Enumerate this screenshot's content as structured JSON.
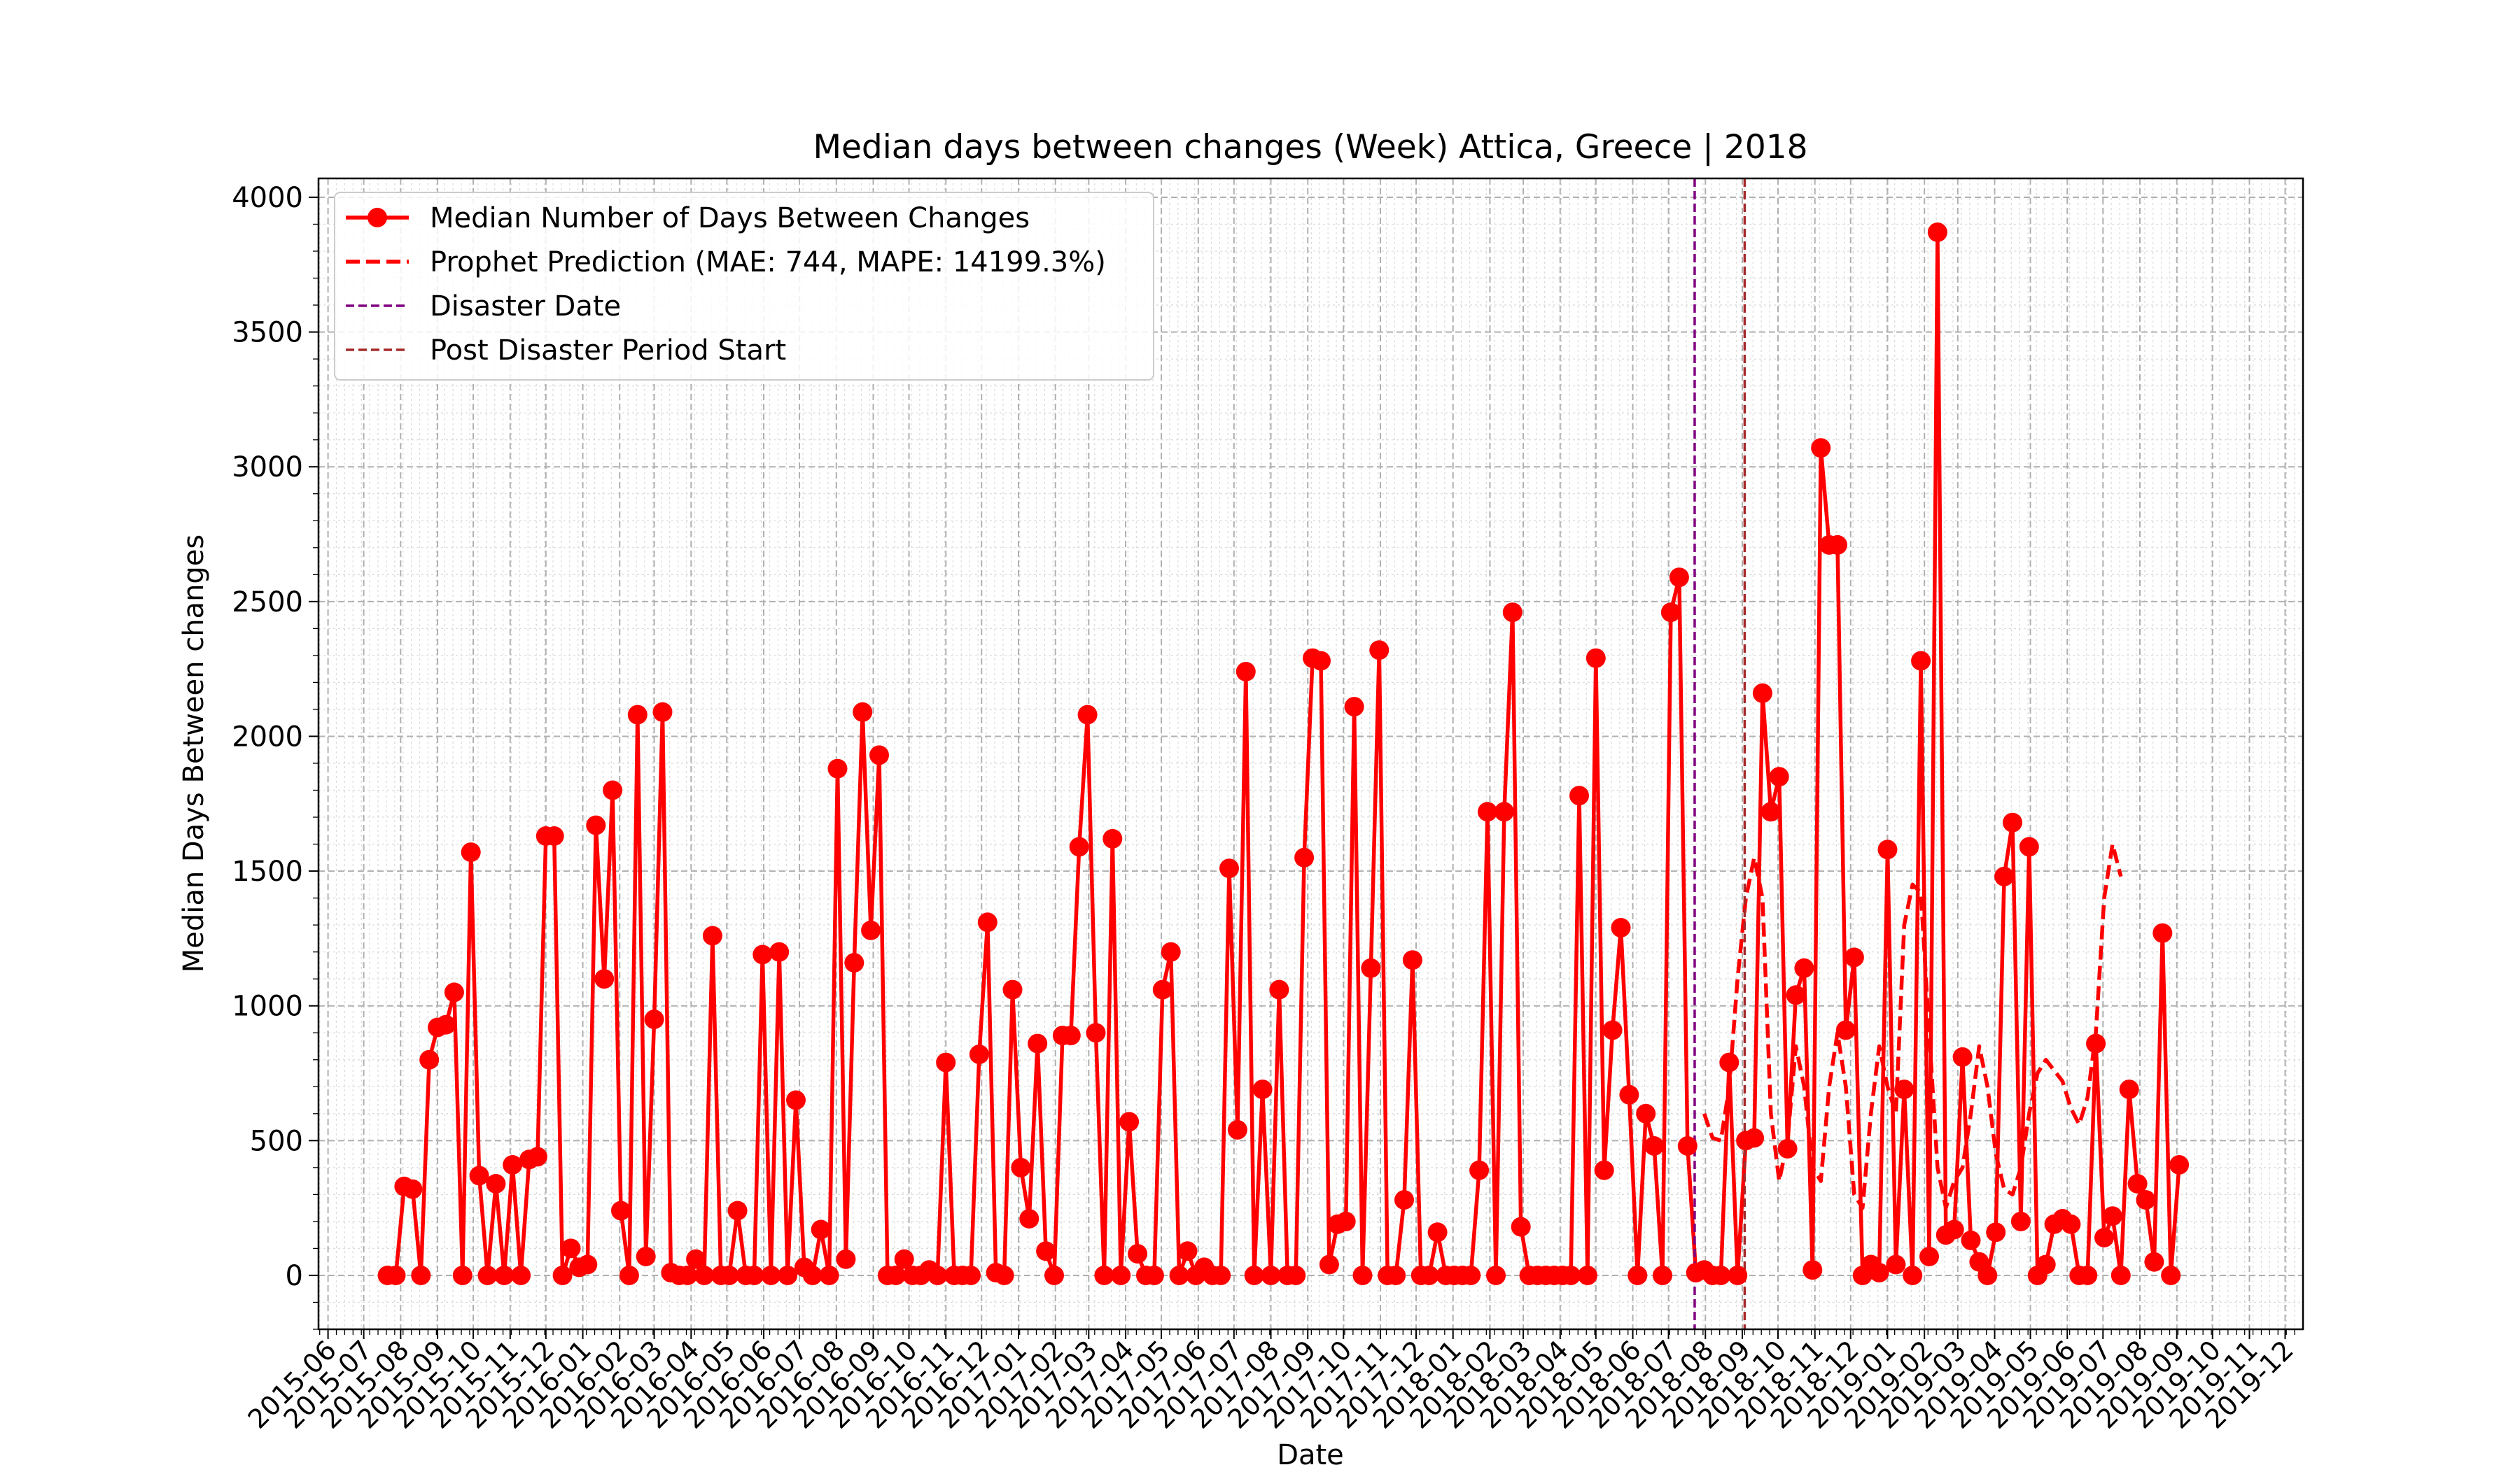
{
  "chart_data": {
    "type": "line",
    "title": "Median days between changes (Week) Attica, Greece | 2018",
    "xlabel": "Date",
    "ylabel": "Median Days Between changes",
    "ylim": [
      -200,
      4070
    ],
    "yticks": [
      0,
      500,
      1000,
      1500,
      2000,
      2500,
      3000,
      3500,
      4000
    ],
    "ytick_labels": [
      "0",
      "500",
      "1000",
      "1500",
      "2000",
      "2500",
      "3000",
      "3500",
      "4000"
    ],
    "xlim": [
      "2015-05-24",
      "2019-12-16"
    ],
    "xtick_labels": [
      "2015-06",
      "2015-07",
      "2015-08",
      "2015-09",
      "2015-10",
      "2015-11",
      "2015-12",
      "2016-01",
      "2016-02",
      "2016-03",
      "2016-04",
      "2016-05",
      "2016-06",
      "2016-07",
      "2016-08",
      "2016-09",
      "2016-10",
      "2016-11",
      "2016-12",
      "2017-01",
      "2017-02",
      "2017-03",
      "2017-04",
      "2017-05",
      "2017-06",
      "2017-07",
      "2017-08",
      "2017-09",
      "2017-10",
      "2017-11",
      "2017-12",
      "2018-01",
      "2018-02",
      "2018-03",
      "2018-04",
      "2018-05",
      "2018-06",
      "2018-07",
      "2018-08",
      "2018-09",
      "2018-10",
      "2018-11",
      "2018-12",
      "2019-01",
      "2019-02",
      "2019-03",
      "2019-04",
      "2019-05",
      "2019-06",
      "2019-07",
      "2019-08",
      "2019-09",
      "2019-10",
      "2019-11",
      "2019-12"
    ],
    "grid": true,
    "legend_position": "top-left",
    "series": [
      {
        "name": "Median Number of Days Between Changes",
        "style": "line-marker",
        "color": "#ff0000",
        "start_date": "2015-07-21",
        "step_days": 7,
        "values": [
          0,
          0,
          330,
          320,
          0,
          800,
          920,
          930,
          1050,
          0,
          1570,
          370,
          0,
          340,
          0,
          410,
          0,
          430,
          440,
          1630,
          1630,
          0,
          100,
          30,
          40,
          1670,
          1100,
          1800,
          240,
          0,
          2080,
          70,
          950,
          2090,
          10,
          0,
          0,
          60,
          0,
          1260,
          0,
          0,
          240,
          0,
          0,
          1190,
          0,
          1200,
          0,
          650,
          30,
          0,
          170,
          0,
          1880,
          60,
          1160,
          2090,
          1280,
          1930,
          0,
          0,
          60,
          0,
          0,
          20,
          0,
          790,
          0,
          0,
          0,
          820,
          1310,
          10,
          0,
          1060,
          400,
          210,
          860,
          90,
          0,
          890,
          890,
          1590,
          2080,
          900,
          0,
          1620,
          0,
          570,
          80,
          0,
          0,
          1060,
          1200,
          0,
          90,
          0,
          30,
          0,
          0,
          1510,
          540,
          2240,
          0,
          690,
          0,
          1060,
          0,
          0,
          1550,
          2290,
          2280,
          40,
          190,
          200,
          2110,
          0,
          1140,
          2320,
          0,
          0,
          280,
          1170,
          0,
          0,
          160,
          0,
          0,
          0,
          0,
          390,
          1720,
          0,
          1720,
          2460,
          180,
          0,
          0,
          0,
          0,
          0,
          0,
          1780,
          0,
          2290,
          390,
          910,
          1290,
          670,
          0,
          600,
          480,
          0,
          2460,
          2590,
          480,
          10,
          20,
          0,
          0,
          790,
          0,
          500,
          510,
          2160,
          1720,
          1850,
          470,
          1040,
          1140,
          20,
          3070,
          2710,
          2710,
          910,
          1180,
          0,
          40,
          10,
          1580,
          40,
          690,
          0,
          2280,
          70,
          3870,
          150,
          170,
          810,
          130,
          50,
          0,
          160,
          1480,
          1680,
          200,
          1590,
          0,
          40,
          190,
          210,
          190,
          0,
          0,
          860,
          140,
          220,
          0,
          690,
          340,
          280,
          50,
          1270,
          0,
          410
        ]
      },
      {
        "name": "Prophet Prediction (MAE: 744, MAPE: 14199.3%)",
        "style": "dashed",
        "color": "#ff0000",
        "start_date": "2018-07-31",
        "step_days": 7,
        "values": [
          600,
          510,
          500,
          700,
          1100,
          1400,
          1550,
          1400,
          600,
          350,
          500,
          850,
          700,
          400,
          350,
          700,
          900,
          700,
          300,
          250,
          600,
          850,
          700,
          600,
          1300,
          1450,
          1420,
          900,
          400,
          250,
          350,
          400,
          600,
          850,
          700,
          450,
          320,
          300,
          400,
          600,
          750,
          800,
          760,
          720,
          620,
          560,
          660,
          900,
          1400,
          1600,
          1480
        ]
      },
      {
        "name": "Disaster Date",
        "style": "vline-dashed",
        "color": "#800080",
        "date": "2018-07-23"
      },
      {
        "name": "Post Disaster Period Start",
        "style": "vline-dashed",
        "color": "#a52a2a",
        "date": "2018-09-03"
      }
    ]
  }
}
